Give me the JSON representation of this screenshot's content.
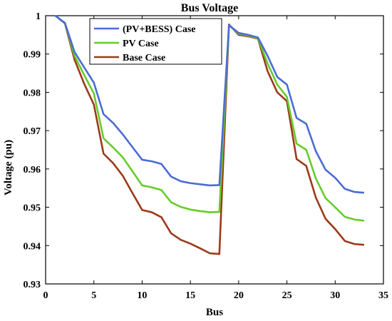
{
  "chart_data": {
    "type": "line",
    "title": "Bus Voltage",
    "xlabel": "Bus",
    "ylabel": "Voltage (pu)",
    "xlim": [
      0,
      35
    ],
    "ylim": [
      0.93,
      1.0
    ],
    "xticks": [
      0,
      5,
      10,
      15,
      20,
      25,
      30,
      35
    ],
    "yticks": [
      0.93,
      0.94,
      0.95,
      0.96,
      0.97,
      0.98,
      0.99,
      1.0
    ],
    "ytick_labels": [
      "0.93",
      "0.94",
      "0.95",
      "0.96",
      "0.97",
      "0.98",
      "0.99",
      "1"
    ],
    "grid": false,
    "legend_position": "top-center",
    "x": [
      1,
      2,
      3,
      4,
      5,
      6,
      7,
      8,
      9,
      10,
      11,
      12,
      13,
      14,
      15,
      16,
      17,
      18,
      19,
      20,
      21,
      22,
      23,
      24,
      25,
      26,
      27,
      28,
      29,
      30,
      31,
      32,
      33
    ],
    "series": [
      {
        "name": "(PV+BESS) Case",
        "color": "#4a6cd4",
        "values": [
          1.0,
          0.9981,
          0.9905,
          0.9865,
          0.9825,
          0.9743,
          0.972,
          0.969,
          0.9657,
          0.9624,
          0.962,
          0.9613,
          0.958,
          0.9568,
          0.9563,
          0.956,
          0.9557,
          0.9558,
          0.9975,
          0.9955,
          0.995,
          0.9943,
          0.9895,
          0.984,
          0.982,
          0.9733,
          0.9718,
          0.9646,
          0.9598,
          0.9577,
          0.9548,
          0.954,
          0.9538
        ]
      },
      {
        "name": "PV Case",
        "color": "#66cc2a",
        "values": [
          1.0,
          0.9981,
          0.9895,
          0.9845,
          0.9797,
          0.968,
          0.9656,
          0.963,
          0.9594,
          0.9557,
          0.9552,
          0.9545,
          0.9513,
          0.9501,
          0.9494,
          0.949,
          0.9487,
          0.9488,
          0.9975,
          0.9953,
          0.9948,
          0.9941,
          0.9875,
          0.982,
          0.9788,
          0.9666,
          0.965,
          0.9575,
          0.9524,
          0.95,
          0.9475,
          0.9468,
          0.9465
        ]
      },
      {
        "name": "Base Case",
        "color": "#9c3a1a",
        "values": [
          1.0,
          0.998,
          0.9885,
          0.9822,
          0.9768,
          0.964,
          0.9615,
          0.9582,
          0.9537,
          0.9493,
          0.9487,
          0.9474,
          0.9432,
          0.9415,
          0.9405,
          0.9393,
          0.938,
          0.9378,
          0.9977,
          0.995,
          0.9946,
          0.994,
          0.9855,
          0.98,
          0.9777,
          0.9626,
          0.9608,
          0.9525,
          0.947,
          0.9443,
          0.9412,
          0.9404,
          0.9402
        ]
      }
    ]
  }
}
